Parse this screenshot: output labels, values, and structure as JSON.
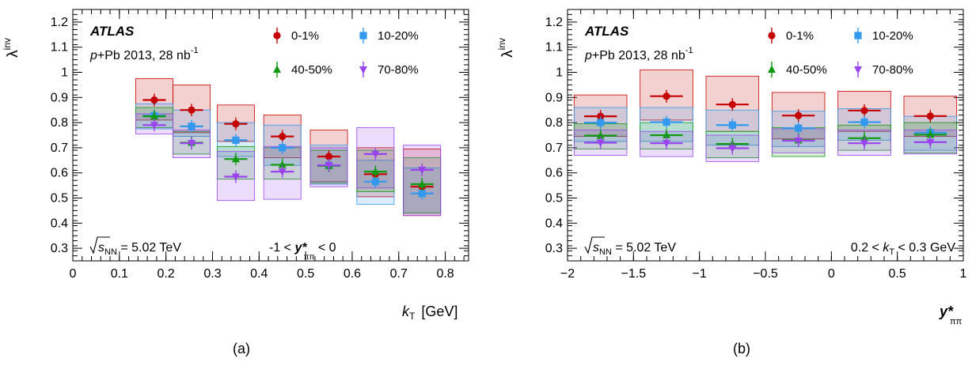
{
  "colors": {
    "0-1%": "#c40000",
    "10-20%": "#3399ee",
    "40-50%": "#119911",
    "70-80%": "#9944ee"
  },
  "chart_data": [
    {
      "type": "scatter",
      "caption": "(a)",
      "ylabel": "λ",
      "ylabel_sup": "inv",
      "xlabel": "k",
      "xlabel_sub": "T",
      "xlabel_unit": "[GeV]",
      "xlim": [
        0,
        0.85
      ],
      "ylim": [
        0.25,
        1.25
      ],
      "xticks": [
        0,
        0.1,
        0.2,
        0.3,
        0.4,
        0.5,
        0.6,
        0.7,
        0.8
      ],
      "xticklabels": [
        "0",
        "0.1",
        "0.2",
        "0.3",
        "0.4",
        "0.5",
        "0.6",
        "0.7",
        "0.8"
      ],
      "yticks": [
        0.3,
        0.4,
        0.5,
        0.6,
        0.7,
        0.8,
        0.9,
        1.0,
        1.1,
        1.2
      ],
      "yticklabels": [
        "0.3",
        "0.4",
        "0.5",
        "0.6",
        "0.7",
        "0.8",
        "0.9",
        "1",
        "1.1",
        "1.2"
      ],
      "atlas": "ATLAS",
      "dataset": "p+Pb 2013, 28 nb",
      "dataset_sup": "-1",
      "energy_label": "= 5.02 TeV",
      "energy_sqrt": "s",
      "energy_sub": "NN",
      "selection": {
        "pre": "-1 <",
        "var": "y*",
        "sub": "ππ",
        "post": "< 0"
      },
      "xhalf": 0.04,
      "series": [
        {
          "name": "0-1%",
          "marker": "circle",
          "x": [
            0.175,
            0.255,
            0.35,
            0.45,
            0.55,
            0.65,
            0.75
          ],
          "y": [
            0.89,
            0.85,
            0.795,
            0.745,
            0.665,
            0.595,
            0.545
          ],
          "sys_lo": [
            0.81,
            0.76,
            0.725,
            0.66,
            0.565,
            0.505,
            0.43
          ],
          "sys_hi": [
            0.975,
            0.95,
            0.87,
            0.83,
            0.77,
            0.7,
            0.695
          ]
        },
        {
          "name": "10-20%",
          "marker": "square",
          "x": [
            0.175,
            0.255,
            0.35,
            0.45,
            0.55,
            0.65,
            0.75
          ],
          "y": [
            0.828,
            0.785,
            0.73,
            0.7,
            0.63,
            0.565,
            0.518
          ],
          "sys_lo": [
            0.775,
            0.745,
            0.665,
            0.63,
            0.555,
            0.475,
            0.44
          ],
          "sys_hi": [
            0.875,
            0.85,
            0.8,
            0.79,
            0.71,
            0.65,
            0.62
          ]
        },
        {
          "name": "40-50%",
          "marker": "triangle-up",
          "x": [
            0.175,
            0.255,
            0.35,
            0.45,
            0.55,
            0.65,
            0.75
          ],
          "y": [
            0.825,
            0.72,
            0.655,
            0.632,
            0.628,
            0.605,
            0.555
          ],
          "sys_lo": [
            0.78,
            0.675,
            0.575,
            0.575,
            0.56,
            0.525,
            0.44
          ],
          "sys_hi": [
            0.86,
            0.765,
            0.705,
            0.7,
            0.69,
            0.69,
            0.66
          ]
        },
        {
          "name": "70-80%",
          "marker": "triangle-down",
          "x": [
            0.175,
            0.255,
            0.35,
            0.45,
            0.55,
            0.65,
            0.75
          ],
          "y": [
            0.79,
            0.718,
            0.585,
            0.605,
            0.63,
            0.675,
            0.612
          ],
          "sys_lo": [
            0.755,
            0.66,
            0.49,
            0.495,
            0.545,
            0.54,
            0.43
          ],
          "sys_hi": [
            0.835,
            0.77,
            0.685,
            0.705,
            0.7,
            0.78,
            0.71
          ]
        }
      ]
    },
    {
      "type": "scatter",
      "caption": "(b)",
      "ylabel": "λ",
      "ylabel_sup": "inv",
      "xlabel": "y*",
      "xlabel_sub": "ππ",
      "xlabel_unit": "",
      "xlim": [
        -2,
        1
      ],
      "ylim": [
        0.25,
        1.25
      ],
      "xticks": [
        -2,
        -1.5,
        -1,
        -0.5,
        0,
        0.5,
        1
      ],
      "xticklabels": [
        "−2",
        "−1.5",
        "−1",
        "−0.5",
        "0",
        "0.5",
        "1"
      ],
      "yticks": [
        0.3,
        0.4,
        0.5,
        0.6,
        0.7,
        0.8,
        0.9,
        1.0,
        1.1,
        1.2
      ],
      "yticklabels": [
        "0.3",
        "0.4",
        "0.5",
        "0.6",
        "0.7",
        "0.8",
        "0.9",
        "1",
        "1.1",
        "1.2"
      ],
      "atlas": "ATLAS",
      "dataset": "p+Pb 2013, 28 nb",
      "dataset_sup": "-1",
      "energy_label": "= 5.02 TeV",
      "energy_sqrt": "s",
      "energy_sub": "NN",
      "selection_b": "0.2 < k",
      "selection_b_sub": "T",
      "selection_b_post": "< 0.3 GeV",
      "xhalf": 0.2,
      "series": [
        {
          "name": "0-1%",
          "marker": "circle",
          "x": [
            -1.75,
            -1.25,
            -0.75,
            -0.25,
            0.25,
            0.75
          ],
          "y": [
            0.825,
            0.905,
            0.872,
            0.828,
            0.848,
            0.826
          ],
          "sys_lo": [
            0.745,
            0.81,
            0.765,
            0.735,
            0.765,
            0.745
          ],
          "sys_hi": [
            0.91,
            1.01,
            0.985,
            0.92,
            0.925,
            0.905
          ]
        },
        {
          "name": "10-20%",
          "marker": "square",
          "x": [
            -1.75,
            -1.25,
            -0.75,
            -0.25,
            0.25,
            0.75
          ],
          "y": [
            0.8,
            0.802,
            0.79,
            0.778,
            0.802,
            0.76
          ],
          "sys_lo": [
            0.725,
            0.725,
            0.71,
            0.705,
            0.73,
            0.69
          ],
          "sys_hi": [
            0.86,
            0.86,
            0.85,
            0.845,
            0.855,
            0.825
          ]
        },
        {
          "name": "40-50%",
          "marker": "triangle-up",
          "x": [
            -1.75,
            -1.25,
            -0.75,
            -0.25,
            0.25,
            0.75
          ],
          "y": [
            0.748,
            0.75,
            0.715,
            0.73,
            0.738,
            0.752
          ],
          "sys_lo": [
            0.695,
            0.695,
            0.66,
            0.665,
            0.69,
            0.68
          ],
          "sys_hi": [
            0.795,
            0.8,
            0.765,
            0.78,
            0.79,
            0.8
          ]
        },
        {
          "name": "70-80%",
          "marker": "triangle-down",
          "x": [
            -1.75,
            -1.25,
            -0.75,
            -0.25,
            0.25,
            0.75
          ],
          "y": [
            0.72,
            0.718,
            0.698,
            0.728,
            0.718,
            0.722
          ],
          "sys_lo": [
            0.67,
            0.665,
            0.645,
            0.68,
            0.67,
            0.675
          ],
          "sys_hi": [
            0.77,
            0.765,
            0.75,
            0.775,
            0.77,
            0.77
          ]
        }
      ]
    }
  ]
}
